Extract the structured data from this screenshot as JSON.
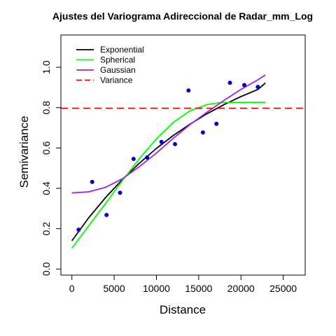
{
  "chart_data": {
    "type": "scatter",
    "title": "Ajustes del Variograma Adireccional de Radar_mm_Log",
    "xlabel": "Distance",
    "ylabel": "Semivariance",
    "xlim": [
      -1300,
      27600
    ],
    "ylim": [
      -0.03,
      1.16
    ],
    "x_ticks": [
      0,
      5000,
      10000,
      15000,
      20000,
      25000
    ],
    "y_ticks": [
      0.0,
      0.2,
      0.4,
      0.6,
      0.8,
      1.0
    ],
    "x_tick_labels": [
      "0",
      "5000",
      "10000",
      "15000",
      "20000",
      "25000"
    ],
    "y_tick_labels": [
      "0.0",
      "0.2",
      "0.4",
      "0.6",
      "0.8",
      "1.0"
    ],
    "grid": false,
    "legend_position": "top-left",
    "points": {
      "color": "#0000CD",
      "x": [
        800,
        2400,
        4100,
        5700,
        7300,
        8900,
        10600,
        12200,
        13800,
        15500,
        17100,
        18700,
        20400,
        22000
      ],
      "y": [
        0.195,
        0.432,
        0.268,
        0.378,
        0.546,
        0.553,
        0.63,
        0.619,
        0.885,
        0.677,
        0.72,
        0.923,
        0.912,
        0.903
      ]
    },
    "series": [
      {
        "name": "Exponential",
        "color": "#000000",
        "x": [
          0,
          2000,
          4000,
          6000,
          8000,
          10000,
          12000,
          14000,
          16000,
          18000,
          20000,
          22000,
          22900
        ],
        "y": [
          0.14,
          0.255,
          0.355,
          0.445,
          0.525,
          0.598,
          0.662,
          0.719,
          0.77,
          0.815,
          0.855,
          0.89,
          0.922
        ]
      },
      {
        "name": "Spherical",
        "color": "#00FF00",
        "x": [
          0,
          2000,
          4000,
          6000,
          8000,
          10000,
          12000,
          14000,
          16000,
          17500,
          18500,
          20000,
          22000,
          22900
        ],
        "y": [
          0.103,
          0.215,
          0.326,
          0.44,
          0.548,
          0.645,
          0.727,
          0.785,
          0.815,
          0.825,
          0.826,
          0.826,
          0.826,
          0.826
        ]
      },
      {
        "name": "Gaussian",
        "color": "#A020F0",
        "x": [
          0,
          2000,
          4000,
          6000,
          8000,
          10000,
          12000,
          14000,
          16000,
          18000,
          20000,
          22000,
          22900
        ],
        "y": [
          0.377,
          0.383,
          0.405,
          0.448,
          0.508,
          0.575,
          0.648,
          0.717,
          0.778,
          0.836,
          0.89,
          0.938,
          0.962
        ]
      }
    ],
    "variance": {
      "name": "Variance",
      "color": "#FF0000",
      "y": 0.797
    },
    "legend": [
      "Exponential",
      "Spherical",
      "Gaussian",
      "Variance"
    ]
  }
}
